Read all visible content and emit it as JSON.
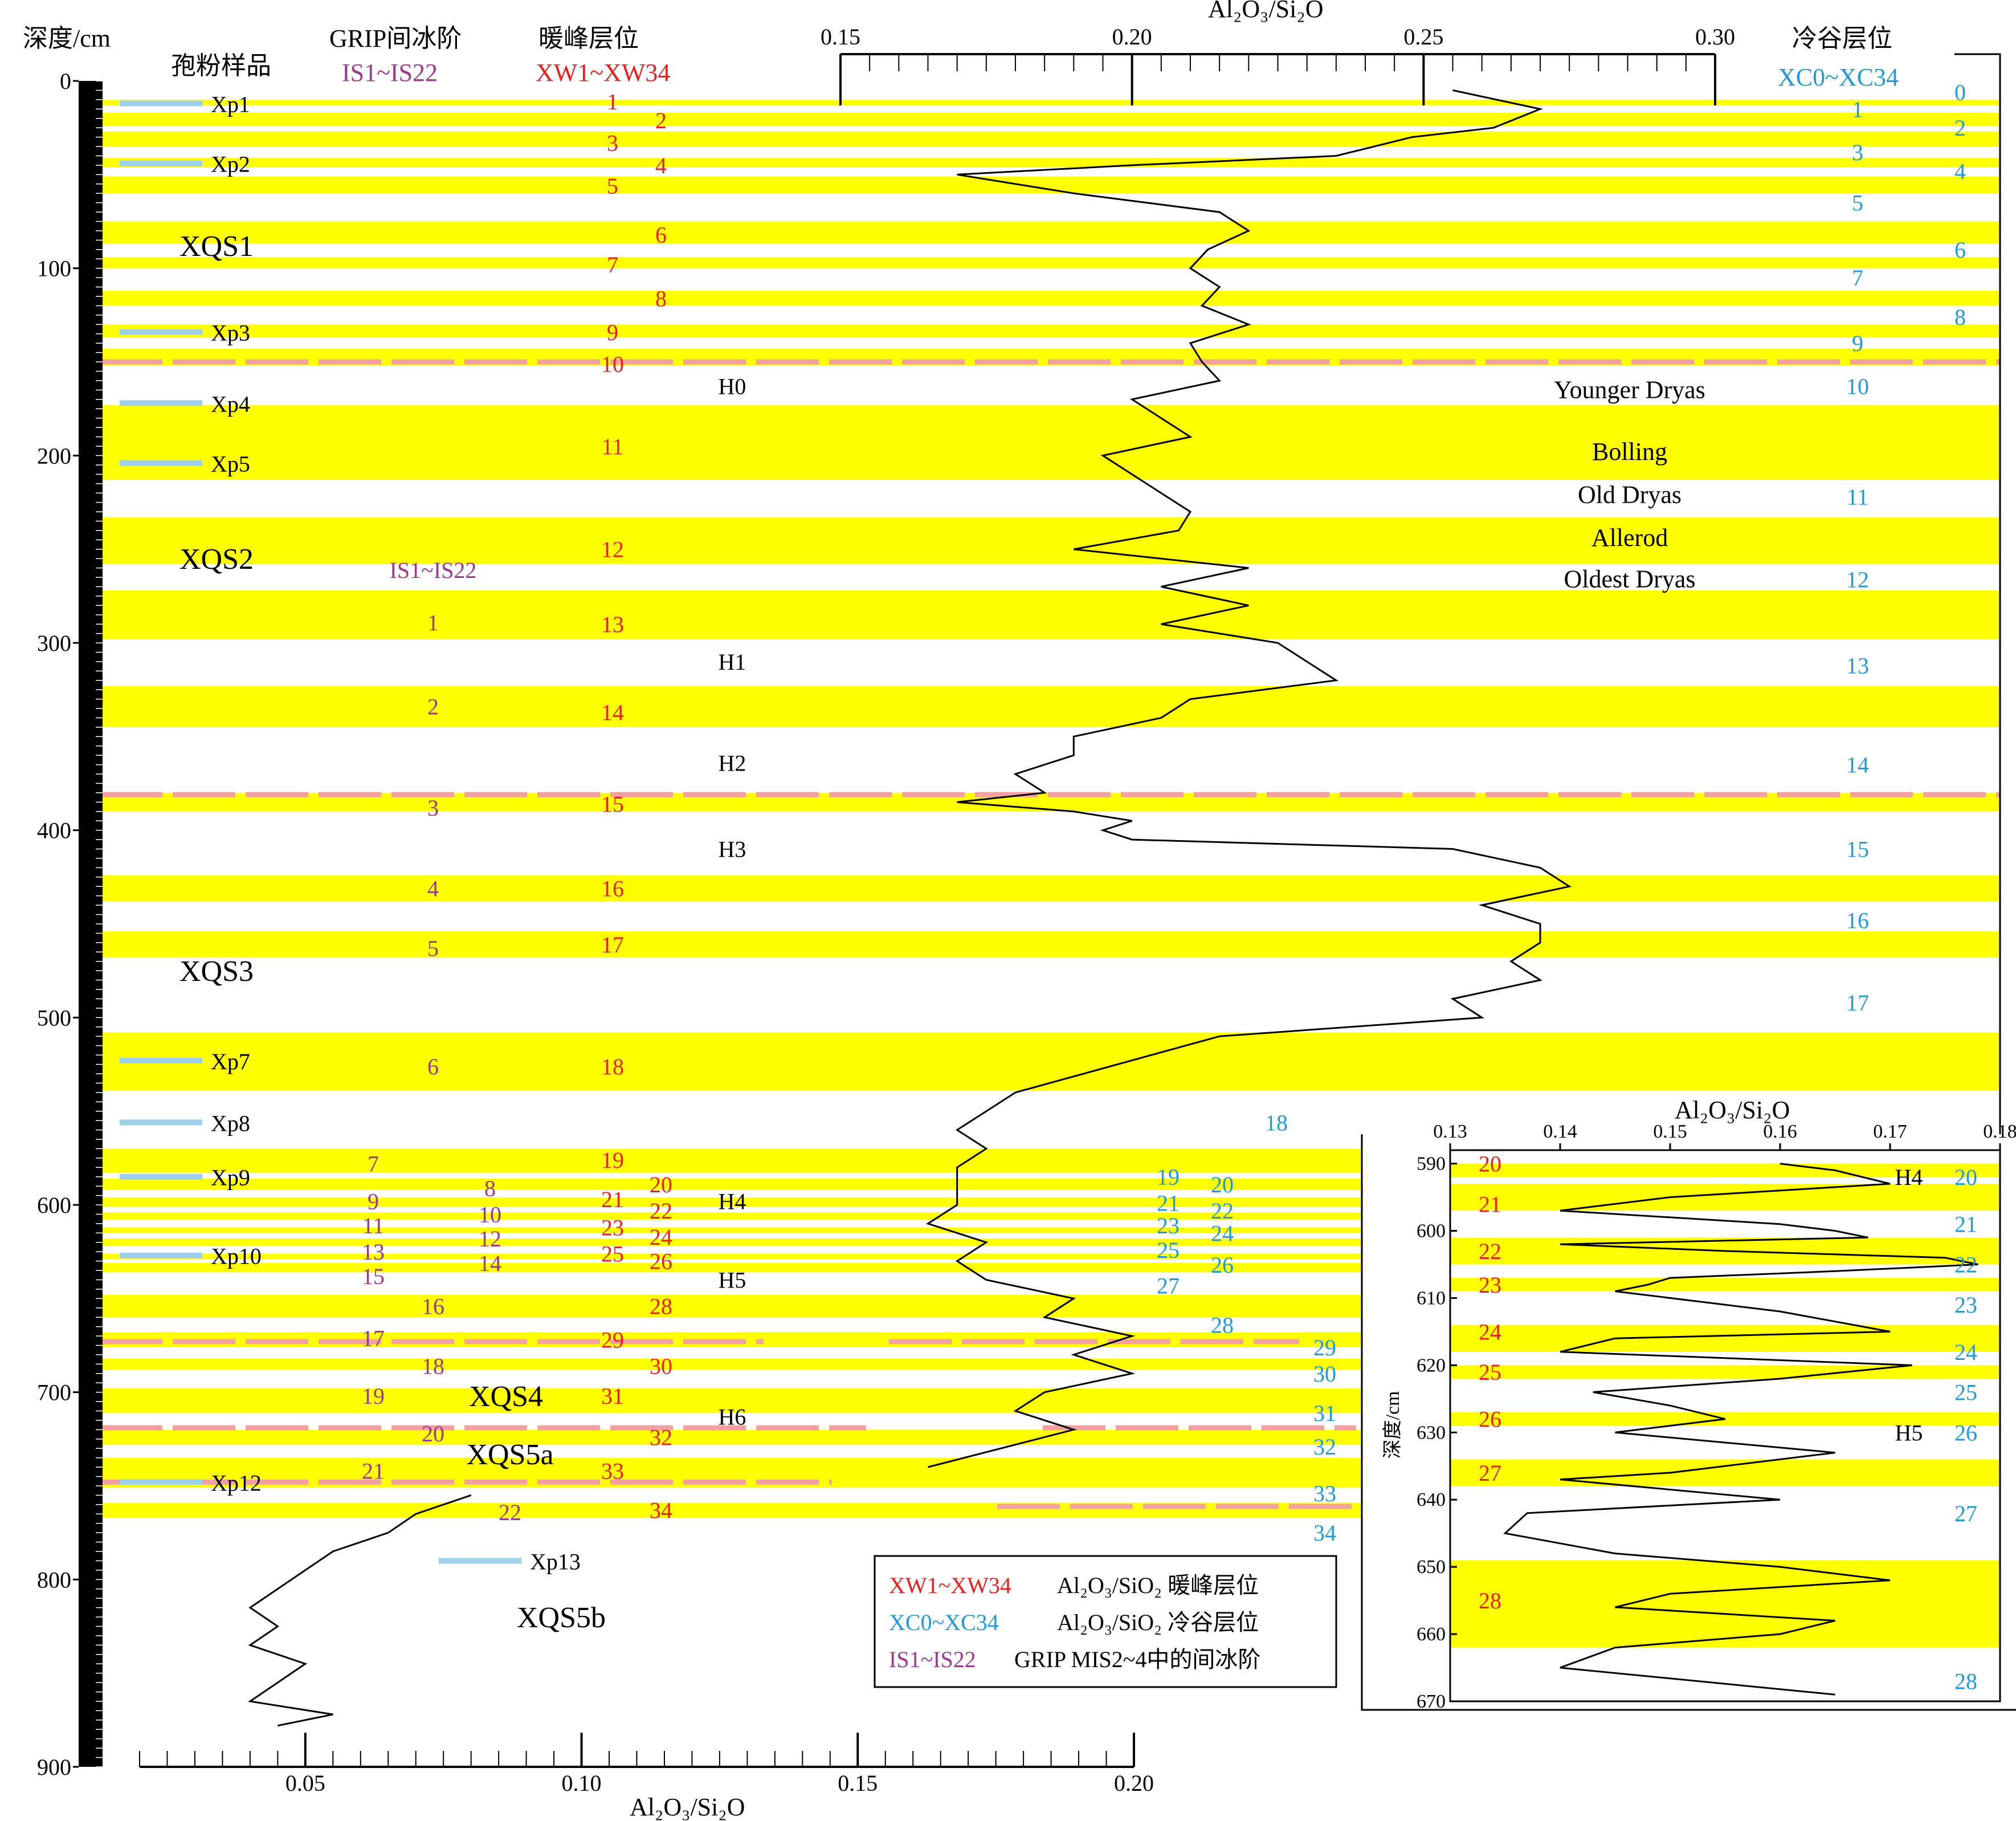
{
  "colors": {
    "band": "#ffff00",
    "warm": "#e8201f",
    "cold": "#1f9ad6",
    "interstadial": "#9b3a8c",
    "boundary": "#f2a0a0",
    "sample": "#9ed0ec",
    "curve": "#000000"
  },
  "headers": {
    "depth": "深度/cm",
    "pollen": "孢粉样品",
    "grip": "GRIP间冰阶",
    "grip_range": "IS1~IS22",
    "warm": "暖峰层位",
    "warm_range": "XW1~XW34",
    "top_axis": "Al₂O₃/Si₂O",
    "cold": "冷谷层位",
    "cold_range": "XC0~XC34",
    "bottom_axis": "Al₂O₃/Si₂O"
  },
  "depth_ticks": [
    "0",
    "100",
    "200",
    "300",
    "400",
    "500",
    "600",
    "700",
    "800",
    "900"
  ],
  "top_ticks": [
    "0.15",
    "0.20",
    "0.25",
    "0.30"
  ],
  "bottom_ticks": [
    "0.05",
    "0.10",
    "0.15",
    "0.20"
  ],
  "units": [
    {
      "label": "XQS1",
      "depth": 88
    },
    {
      "label": "XQS2",
      "depth": 255
    },
    {
      "label": "XQS3",
      "depth": 475
    },
    {
      "label": "XQS4",
      "depth": 702
    },
    {
      "label": "XQS5a",
      "depth": 733
    },
    {
      "label": "XQS5b",
      "depth": 820
    }
  ],
  "samples": [
    {
      "label": "Xp1",
      "depth": 12
    },
    {
      "label": "Xp2",
      "depth": 44
    },
    {
      "label": "Xp3",
      "depth": 134
    },
    {
      "label": "Xp4",
      "depth": 172
    },
    {
      "label": "Xp5",
      "depth": 204
    },
    {
      "label": "Xp7",
      "depth": 523
    },
    {
      "label": "Xp8",
      "depth": 556
    },
    {
      "label": "Xp9",
      "depth": 585
    },
    {
      "label": "Xp10",
      "depth": 627
    },
    {
      "label": "Xp12",
      "depth": 748
    },
    {
      "label": "Xp13",
      "depth": 790
    }
  ],
  "heinrich": [
    {
      "label": "H0",
      "depth": 163
    },
    {
      "label": "H1",
      "depth": 310
    },
    {
      "label": "H2",
      "depth": 364
    },
    {
      "label": "H3",
      "depth": 410
    },
    {
      "label": "H4",
      "depth": 598
    },
    {
      "label": "H5",
      "depth": 640
    },
    {
      "label": "H6",
      "depth": 713
    }
  ],
  "climate_events": [
    {
      "label": "Younger Dryas",
      "depth": 165
    },
    {
      "label": "Bolling",
      "depth": 198
    },
    {
      "label": "Old Dryas",
      "depth": 221
    },
    {
      "label": "Allerod",
      "depth": 244
    },
    {
      "label": "Oldest Dryas",
      "depth": 266
    }
  ],
  "legend": [
    {
      "code": "XW1~XW34",
      "text": "Al₂O₃/SiO₂ 暖峰层位",
      "color": "warm"
    },
    {
      "code": "XC0~XC34",
      "text": "Al₂O₃/SiO₂ 冷谷层位",
      "color": "cold"
    },
    {
      "code": "IS1~IS22",
      "text": "GRIP MIS2~4中的间冰阶",
      "color": "interstadial"
    }
  ],
  "chart_data": [
    {
      "type": "line",
      "title": "Al₂O₃/Si₂O (0–770 cm, upper scale)",
      "xlabel": "Al₂O₃/Si₂O",
      "ylabel": "深度/cm",
      "xlim": [
        0.15,
        0.3
      ],
      "ylim": [
        900,
        0
      ],
      "x": [
        0.255,
        0.27,
        0.262,
        0.248,
        0.235,
        0.2,
        0.17,
        0.19,
        0.215,
        0.22,
        0.213,
        0.21,
        0.215,
        0.212,
        0.22,
        0.21,
        0.212,
        0.215,
        0.2,
        0.205,
        0.21,
        0.195,
        0.2,
        0.205,
        0.21,
        0.208,
        0.19,
        0.22,
        0.205,
        0.22,
        0.205,
        0.225,
        0.23,
        0.235,
        0.21,
        0.205,
        0.19,
        0.19,
        0.18,
        0.185,
        0.17,
        0.19,
        0.2,
        0.195,
        0.2,
        0.255,
        0.27,
        0.275,
        0.26,
        0.27,
        0.27,
        0.265,
        0.27,
        0.255,
        0.26,
        0.215,
        0.18,
        0.175,
        0.17,
        0.175,
        0.17,
        0.17,
        0.17,
        0.165,
        0.175,
        0.17,
        0.175,
        0.19,
        0.185,
        0.2,
        0.19,
        0.2,
        0.185,
        0.18,
        0.19,
        0.165
      ],
      "y": [
        5,
        15,
        25,
        30,
        40,
        45,
        50,
        60,
        70,
        80,
        90,
        100,
        110,
        120,
        130,
        140,
        150,
        160,
        170,
        180,
        190,
        200,
        210,
        220,
        230,
        240,
        250,
        260,
        270,
        280,
        290,
        300,
        310,
        320,
        330,
        340,
        350,
        360,
        370,
        380,
        385,
        390,
        395,
        400,
        405,
        410,
        420,
        430,
        440,
        450,
        460,
        470,
        480,
        490,
        500,
        510,
        540,
        550,
        560,
        570,
        580,
        590,
        600,
        610,
        620,
        630,
        640,
        650,
        660,
        670,
        680,
        690,
        700,
        710,
        720,
        740
      ],
      "bands_warm": [
        {
          "label": "1",
          "top": 10,
          "bottom": 13
        },
        {
          "label": "2",
          "top": 17,
          "bottom": 24
        },
        {
          "label": "3",
          "top": 27,
          "bottom": 35
        },
        {
          "label": "4",
          "top": 41,
          "bottom": 46
        },
        {
          "label": "5",
          "top": 51,
          "bottom": 60
        },
        {
          "label": "6",
          "top": 75,
          "bottom": 87
        },
        {
          "label": "7",
          "top": 94,
          "bottom": 100
        },
        {
          "label": "8",
          "top": 112,
          "bottom": 120
        },
        {
          "label": "9",
          "top": 130,
          "bottom": 137
        },
        {
          "label": "10",
          "top": 143,
          "bottom": 152
        },
        {
          "label": "11",
          "top": 173,
          "bottom": 213
        },
        {
          "label": "12",
          "top": 233,
          "bottom": 258
        },
        {
          "label": "13",
          "top": 272,
          "bottom": 298
        },
        {
          "label": "14",
          "top": 323,
          "bottom": 345
        },
        {
          "label": "15",
          "top": 380,
          "bottom": 390
        },
        {
          "label": "16",
          "top": 424,
          "bottom": 438
        },
        {
          "label": "17",
          "top": 454,
          "bottom": 468
        },
        {
          "label": "18",
          "top": 508,
          "bottom": 539
        },
        {
          "label": "19",
          "top": 570,
          "bottom": 583
        },
        {
          "label": "20",
          "top": 586,
          "bottom": 592
        },
        {
          "label": "21",
          "top": 596,
          "bottom": 601
        },
        {
          "label": "22",
          "top": 604,
          "bottom": 608
        },
        {
          "label": "23",
          "top": 612,
          "bottom": 615
        },
        {
          "label": "24",
          "top": 618,
          "bottom": 622
        },
        {
          "label": "25",
          "top": 626,
          "bottom": 629
        },
        {
          "label": "26",
          "top": 631,
          "bottom": 636
        },
        {
          "label": "28",
          "top": 648,
          "bottom": 660
        },
        {
          "label": "29",
          "top": 668,
          "bottom": 676
        },
        {
          "label": "30",
          "top": 682,
          "bottom": 688
        },
        {
          "label": "31",
          "top": 698,
          "bottom": 711
        },
        {
          "label": "32",
          "top": 720,
          "bottom": 728
        },
        {
          "label": "33",
          "top": 735,
          "bottom": 751
        },
        {
          "label": "34",
          "top": 759,
          "bottom": 767
        }
      ]
    },
    {
      "type": "line",
      "title": "Al₂O₃/Si₂O (750–880 cm, lower scale)",
      "xlabel": "Al₂O₃/Si₂O",
      "xlim": [
        0.02,
        0.2
      ],
      "x": [
        0.08,
        0.07,
        0.065,
        0.055,
        0.05,
        0.045,
        0.04,
        0.045,
        0.04,
        0.05,
        0.045,
        0.04,
        0.055,
        0.045
      ],
      "y": [
        755,
        765,
        775,
        785,
        795,
        805,
        815,
        825,
        835,
        845,
        855,
        865,
        872,
        878
      ]
    },
    {
      "type": "line",
      "title": "Al₂O₃/Si₂O",
      "xlabel": "Al₂O₃/Si₂O",
      "ylabel": "深度/cm",
      "xlim": [
        0.13,
        0.18
      ],
      "ylim": [
        670,
        590
      ],
      "xticks": [
        "0.13",
        "0.14",
        "0.15",
        "0.16",
        "0.17",
        "0.18"
      ],
      "yticks": [
        "590",
        "600",
        "610",
        "620",
        "630",
        "640",
        "650",
        "660",
        "670"
      ],
      "x": [
        0.16,
        0.165,
        0.17,
        0.15,
        0.14,
        0.16,
        0.165,
        0.168,
        0.14,
        0.155,
        0.175,
        0.178,
        0.165,
        0.15,
        0.148,
        0.145,
        0.16,
        0.17,
        0.145,
        0.14,
        0.172,
        0.16,
        0.143,
        0.15,
        0.155,
        0.145,
        0.165,
        0.15,
        0.14,
        0.16,
        0.137,
        0.135,
        0.145,
        0.16,
        0.17,
        0.15,
        0.145,
        0.165,
        0.16,
        0.145,
        0.14,
        0.165
      ],
      "y": [
        590,
        591,
        593,
        595,
        597,
        599,
        600,
        601,
        602,
        603,
        604,
        605,
        606,
        607,
        608,
        609,
        612,
        615,
        616,
        618,
        620,
        622,
        624,
        626,
        628,
        630,
        633,
        636,
        637,
        640,
        642,
        645,
        648,
        650,
        652,
        654,
        656,
        658,
        660,
        662,
        665,
        669
      ],
      "bands_warm": [
        {
          "label": "20",
          "top": 590,
          "bottom": 592
        },
        {
          "label": "21",
          "top": 593,
          "bottom": 597
        },
        {
          "label": "22",
          "top": 601,
          "bottom": 605
        },
        {
          "label": "23",
          "top": 607,
          "bottom": 609
        },
        {
          "label": "24",
          "top": 614,
          "bottom": 618
        },
        {
          "label": "25",
          "top": 620,
          "bottom": 622
        },
        {
          "label": "26",
          "top": 627,
          "bottom": 629
        },
        {
          "label": "27",
          "top": 634,
          "bottom": 638
        },
        {
          "label": "28",
          "top": 649,
          "bottom": 662
        }
      ]
    }
  ],
  "warm_labels": [
    {
      "label": "1",
      "depth": 11,
      "col": 0
    },
    {
      "label": "2",
      "depth": 21,
      "col": 1
    },
    {
      "label": "3",
      "depth": 33,
      "col": 0
    },
    {
      "label": "4",
      "depth": 45,
      "col": 1
    },
    {
      "label": "5",
      "depth": 56,
      "col": 0
    },
    {
      "label": "6",
      "depth": 82,
      "col": 1
    },
    {
      "label": "7",
      "depth": 98,
      "col": 0
    },
    {
      "label": "8",
      "depth": 116,
      "col": 1
    },
    {
      "label": "9",
      "depth": 134,
      "col": 0
    },
    {
      "label": "10",
      "depth": 151,
      "col": 0
    },
    {
      "label": "11",
      "depth": 195,
      "col": 0
    },
    {
      "label": "12",
      "depth": 250,
      "col": 0
    },
    {
      "label": "13",
      "depth": 290,
      "col": 0
    },
    {
      "label": "14",
      "depth": 337,
      "col": 0
    },
    {
      "label": "15",
      "depth": 386,
      "col": 0
    },
    {
      "label": "16",
      "depth": 431,
      "col": 0
    },
    {
      "label": "17",
      "depth": 461,
      "col": 0
    },
    {
      "label": "18",
      "depth": 526,
      "col": 0
    },
    {
      "label": "19",
      "depth": 576,
      "col": 0
    },
    {
      "label": "20",
      "depth": 589,
      "col": 1
    },
    {
      "label": "21",
      "depth": 597,
      "col": 0
    },
    {
      "label": "22",
      "depth": 603,
      "col": 1
    },
    {
      "label": "23",
      "depth": 612,
      "col": 0
    },
    {
      "label": "24",
      "depth": 617,
      "col": 1
    },
    {
      "label": "25",
      "depth": 626,
      "col": 0
    },
    {
      "label": "26",
      "depth": 630,
      "col": 1
    },
    {
      "label": "28",
      "depth": 654,
      "col": 1
    },
    {
      "label": "29",
      "depth": 672,
      "col": 0
    },
    {
      "label": "30",
      "depth": 686,
      "col": 1
    },
    {
      "label": "31",
      "depth": 702,
      "col": 0
    },
    {
      "label": "32",
      "depth": 724,
      "col": 1
    },
    {
      "label": "33",
      "depth": 742,
      "col": 0
    },
    {
      "label": "34",
      "depth": 763,
      "col": 1
    }
  ],
  "cold_labels": [
    {
      "label": "0",
      "depth": 6,
      "col": 1
    },
    {
      "label": "1",
      "depth": 15,
      "col": 0
    },
    {
      "label": "2",
      "depth": 25,
      "col": 1
    },
    {
      "label": "3",
      "depth": 38,
      "col": 0
    },
    {
      "label": "4",
      "depth": 48,
      "col": 1
    },
    {
      "label": "5",
      "depth": 65,
      "col": 0
    },
    {
      "label": "6",
      "depth": 90,
      "col": 1
    },
    {
      "label": "7",
      "depth": 105,
      "col": 0
    },
    {
      "label": "8",
      "depth": 126,
      "col": 1
    },
    {
      "label": "9",
      "depth": 140,
      "col": 0
    },
    {
      "label": "10",
      "depth": 163,
      "col": 0
    },
    {
      "label": "11",
      "depth": 222,
      "col": 0
    },
    {
      "label": "12",
      "depth": 266,
      "col": 0
    },
    {
      "label": "13",
      "depth": 312,
      "col": 0
    },
    {
      "label": "14",
      "depth": 365,
      "col": 0
    },
    {
      "label": "15",
      "depth": 410,
      "col": 0
    },
    {
      "label": "16",
      "depth": 448,
      "col": 0
    },
    {
      "label": "17",
      "depth": 492,
      "col": 0
    },
    {
      "label": "18",
      "depth": 556,
      "col": 2
    },
    {
      "label": "19",
      "depth": 585,
      "col": 3
    },
    {
      "label": "20",
      "depth": 589,
      "col": 4
    },
    {
      "label": "21",
      "depth": 599,
      "col": 3
    },
    {
      "label": "22",
      "depth": 603,
      "col": 4
    },
    {
      "label": "23",
      "depth": 611,
      "col": 3
    },
    {
      "label": "24",
      "depth": 615,
      "col": 4
    },
    {
      "label": "25",
      "depth": 624,
      "col": 3
    },
    {
      "label": "26",
      "depth": 632,
      "col": 4
    },
    {
      "label": "27",
      "depth": 643,
      "col": 3
    },
    {
      "label": "28",
      "depth": 664,
      "col": 4
    },
    {
      "label": "29",
      "depth": 676,
      "col": 5
    },
    {
      "label": "30",
      "depth": 690,
      "col": 5
    },
    {
      "label": "31",
      "depth": 711,
      "col": 5
    },
    {
      "label": "32",
      "depth": 729,
      "col": 5
    },
    {
      "label": "33",
      "depth": 754,
      "col": 5
    },
    {
      "label": "34",
      "depth": 775,
      "col": 5
    }
  ],
  "is_labels": [
    {
      "label": "IS1~IS22",
      "depth": 261,
      "col": 2
    },
    {
      "label": "1",
      "depth": 289,
      "col": 2
    },
    {
      "label": "2",
      "depth": 334,
      "col": 2
    },
    {
      "label": "3",
      "depth": 388,
      "col": 2
    },
    {
      "label": "4",
      "depth": 431,
      "col": 2
    },
    {
      "label": "5",
      "depth": 463,
      "col": 2
    },
    {
      "label": "6",
      "depth": 526,
      "col": 2
    },
    {
      "label": "7",
      "depth": 578,
      "col": 1
    },
    {
      "label": "8",
      "depth": 591,
      "col": 3
    },
    {
      "label": "9",
      "depth": 598,
      "col": 1
    },
    {
      "label": "10",
      "depth": 605,
      "col": 3
    },
    {
      "label": "11",
      "depth": 611,
      "col": 1
    },
    {
      "label": "12",
      "depth": 618,
      "col": 3
    },
    {
      "label": "13",
      "depth": 625,
      "col": 1
    },
    {
      "label": "14",
      "depth": 631,
      "col": 3
    },
    {
      "label": "15",
      "depth": 638,
      "col": 1
    },
    {
      "label": "16",
      "depth": 654,
      "col": 2
    },
    {
      "label": "17",
      "depth": 671,
      "col": 1
    },
    {
      "label": "18",
      "depth": 686,
      "col": 2
    },
    {
      "label": "19",
      "depth": 702,
      "col": 1
    },
    {
      "label": "20",
      "depth": 722,
      "col": 2
    },
    {
      "label": "21",
      "depth": 742,
      "col": 1
    },
    {
      "label": "22",
      "depth": 764,
      "col": 0
    }
  ],
  "inset_warm_labels": [
    {
      "label": "20",
      "depth": 590
    },
    {
      "label": "21",
      "depth": 596
    },
    {
      "label": "22",
      "depth": 603
    },
    {
      "label": "23",
      "depth": 608
    },
    {
      "label": "24",
      "depth": 615
    },
    {
      "label": "25",
      "depth": 621
    },
    {
      "label": "26",
      "depth": 628
    },
    {
      "label": "27",
      "depth": 636
    },
    {
      "label": "28",
      "depth": 655
    }
  ],
  "inset_cold_labels": [
    {
      "label": "20",
      "depth": 592
    },
    {
      "label": "21",
      "depth": 599
    },
    {
      "label": "22",
      "depth": 605
    },
    {
      "label": "23",
      "depth": 611
    },
    {
      "label": "24",
      "depth": 618
    },
    {
      "label": "25",
      "depth": 624
    },
    {
      "label": "26",
      "depth": 630
    },
    {
      "label": "27",
      "depth": 642
    },
    {
      "label": "28",
      "depth": 667
    }
  ],
  "inset_events": [
    {
      "label": "H4",
      "depth": 592
    },
    {
      "label": "H5",
      "depth": 630
    }
  ]
}
